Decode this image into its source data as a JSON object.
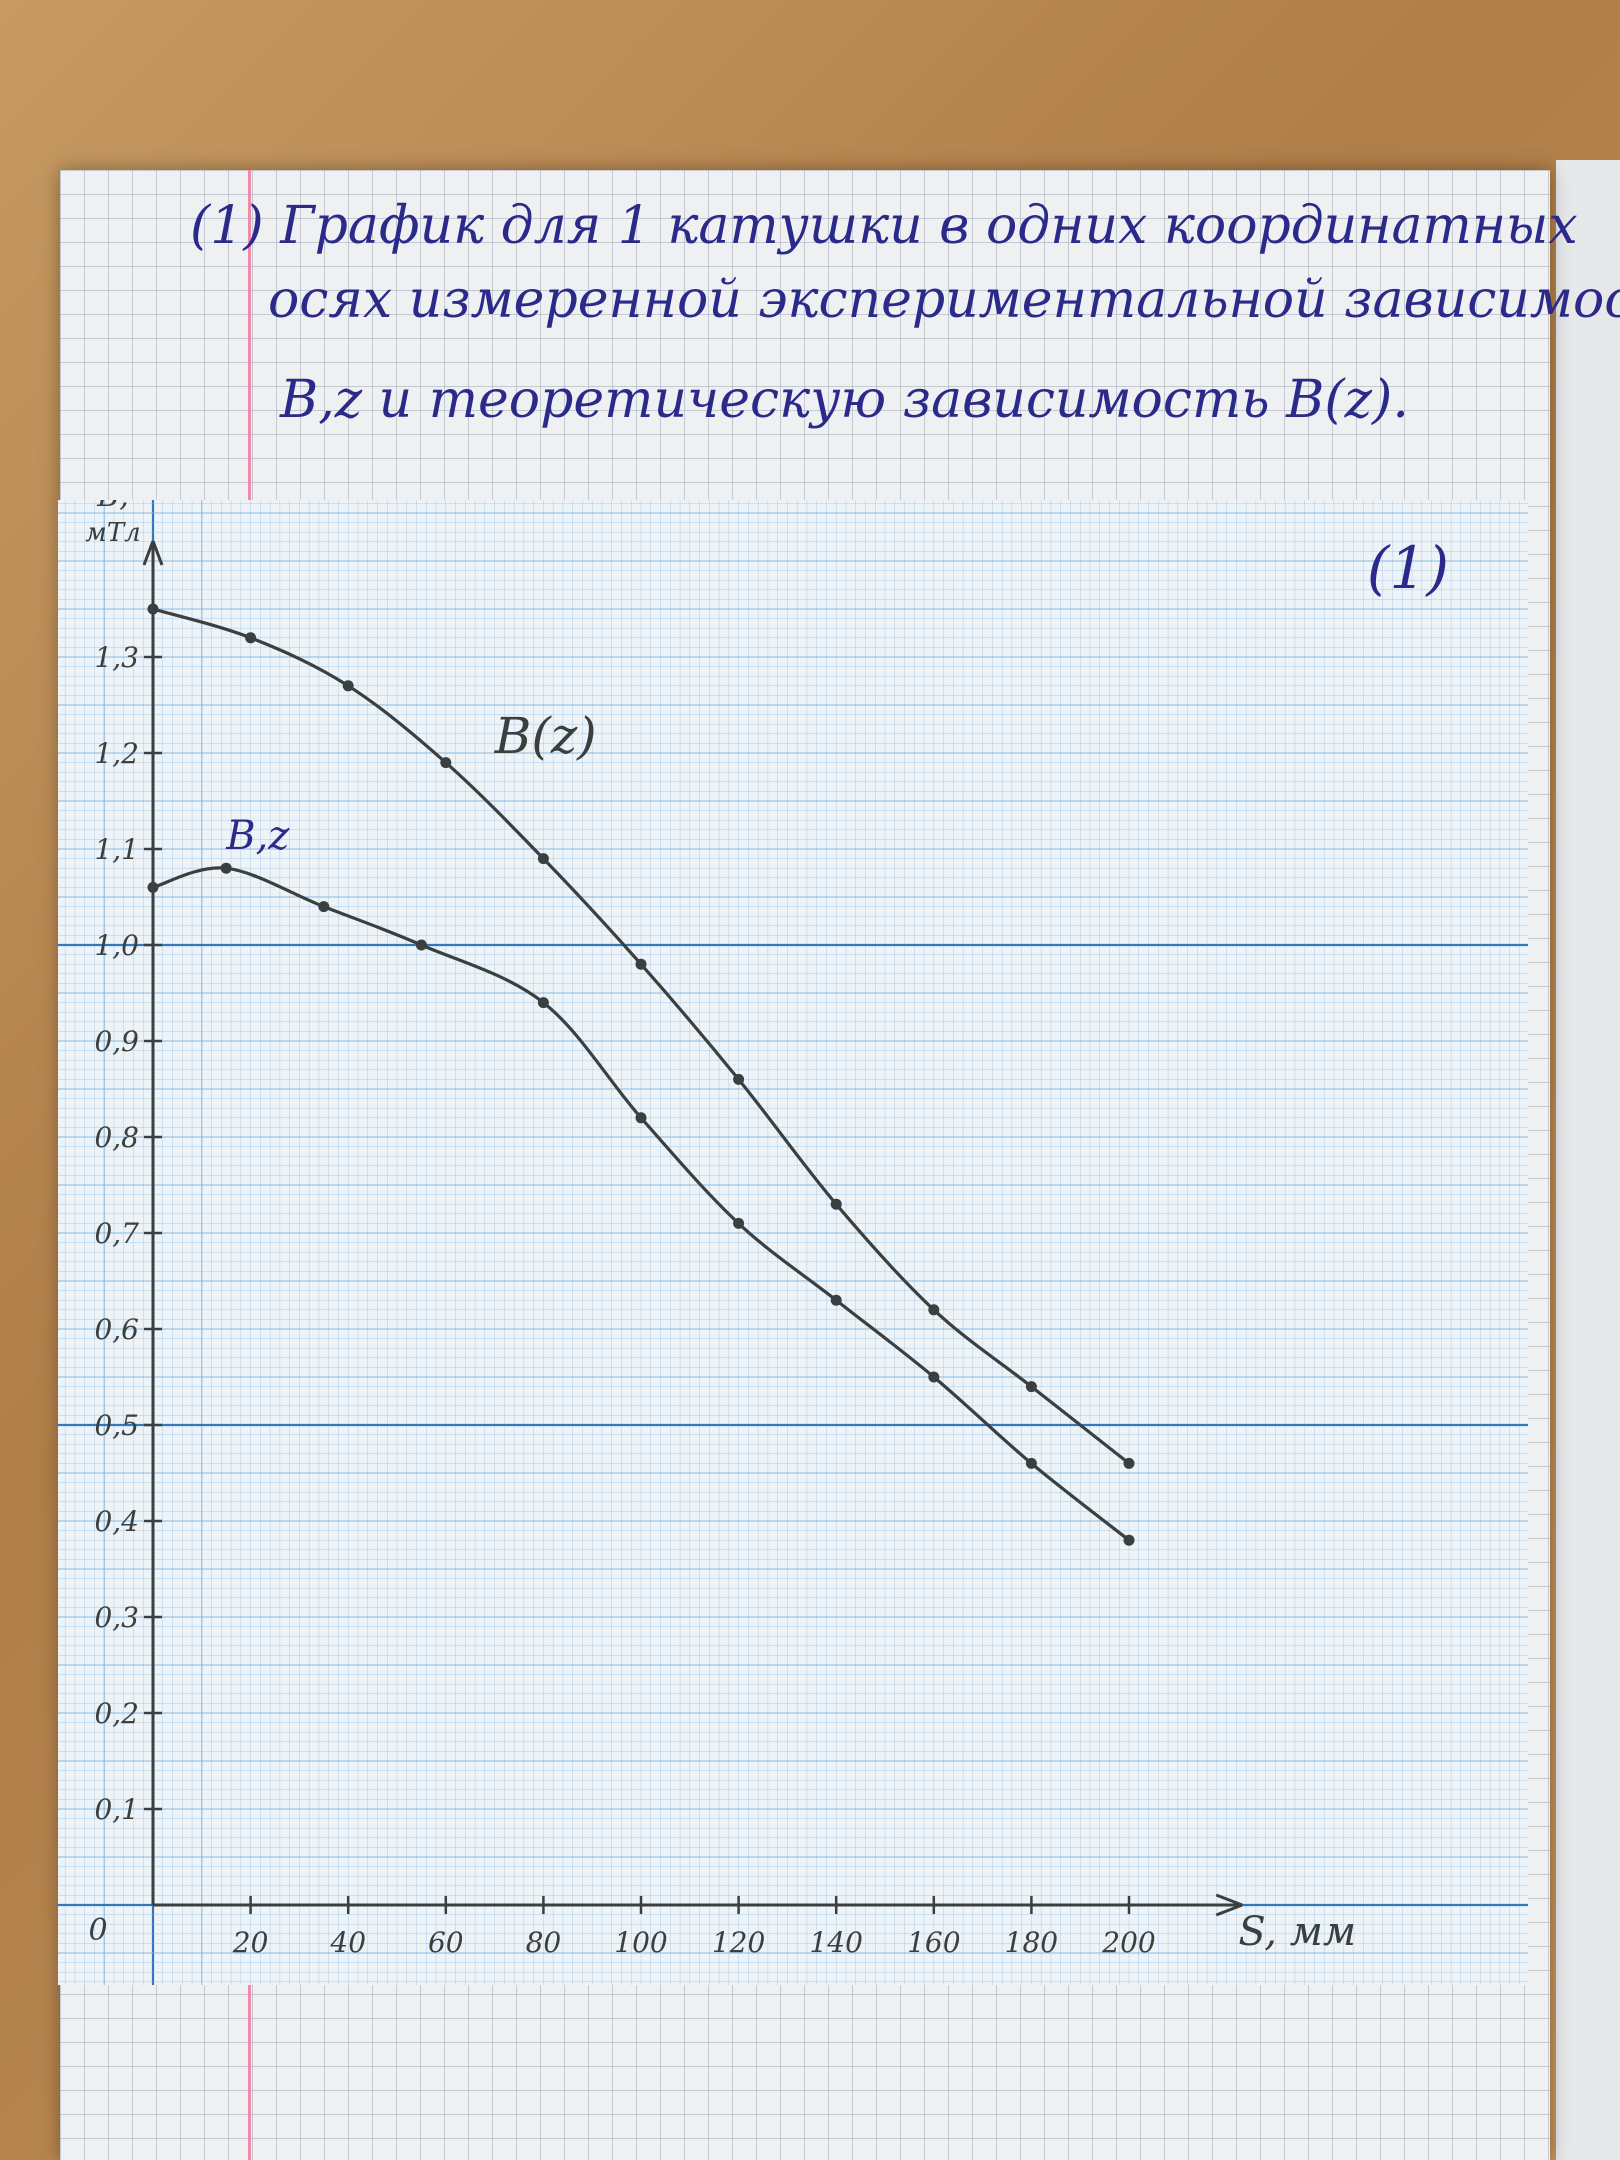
{
  "heading": {
    "line1": "(1) График для 1 катушки в одних координатных",
    "line2": "осях измеренной экспериментальной зависимости",
    "line3": "B,z и теоретическую зависимость B(z)."
  },
  "colors": {
    "ink": "#2b2a8a",
    "pencil": "#3a3f40",
    "grid_major": "#1f6bb8",
    "grid_minor": "#7fb3de"
  },
  "chart_data": {
    "type": "line",
    "title": "(1)",
    "xlabel": "S, мм",
    "ylabel": "B, мТл",
    "origin_label": "0",
    "xlim": [
      0,
      215
    ],
    "ylim": [
      0,
      1.4
    ],
    "xticks": [
      "20",
      "40",
      "60",
      "80",
      "100",
      "120",
      "140",
      "160",
      "180",
      "200"
    ],
    "xtick_values": [
      20,
      40,
      60,
      80,
      100,
      120,
      140,
      160,
      180,
      200
    ],
    "yticks": [
      "0,1",
      "0,2",
      "0,3",
      "0,4",
      "0,5",
      "0,6",
      "0,7",
      "0,8",
      "0,9",
      "1,0",
      "1,1",
      "1,2",
      "1,3"
    ],
    "ytick_values": [
      0.1,
      0.2,
      0.3,
      0.4,
      0.5,
      0.6,
      0.7,
      0.8,
      0.9,
      1.0,
      1.1,
      1.2,
      1.3
    ],
    "grid": true,
    "series": [
      {
        "name": "B(z)",
        "x": [
          0,
          20,
          40,
          60,
          80,
          100,
          120,
          140,
          160,
          180,
          200
        ],
        "y": [
          1.35,
          1.32,
          1.27,
          1.19,
          1.09,
          0.98,
          0.86,
          0.73,
          0.62,
          0.54,
          0.46
        ]
      },
      {
        "name": "B,z",
        "x": [
          0,
          15,
          35,
          55,
          80,
          100,
          120,
          140,
          160,
          180,
          200
        ],
        "y": [
          1.06,
          1.08,
          1.04,
          1.0,
          0.94,
          0.82,
          0.71,
          0.63,
          0.55,
          0.46,
          0.38
        ]
      }
    ]
  }
}
